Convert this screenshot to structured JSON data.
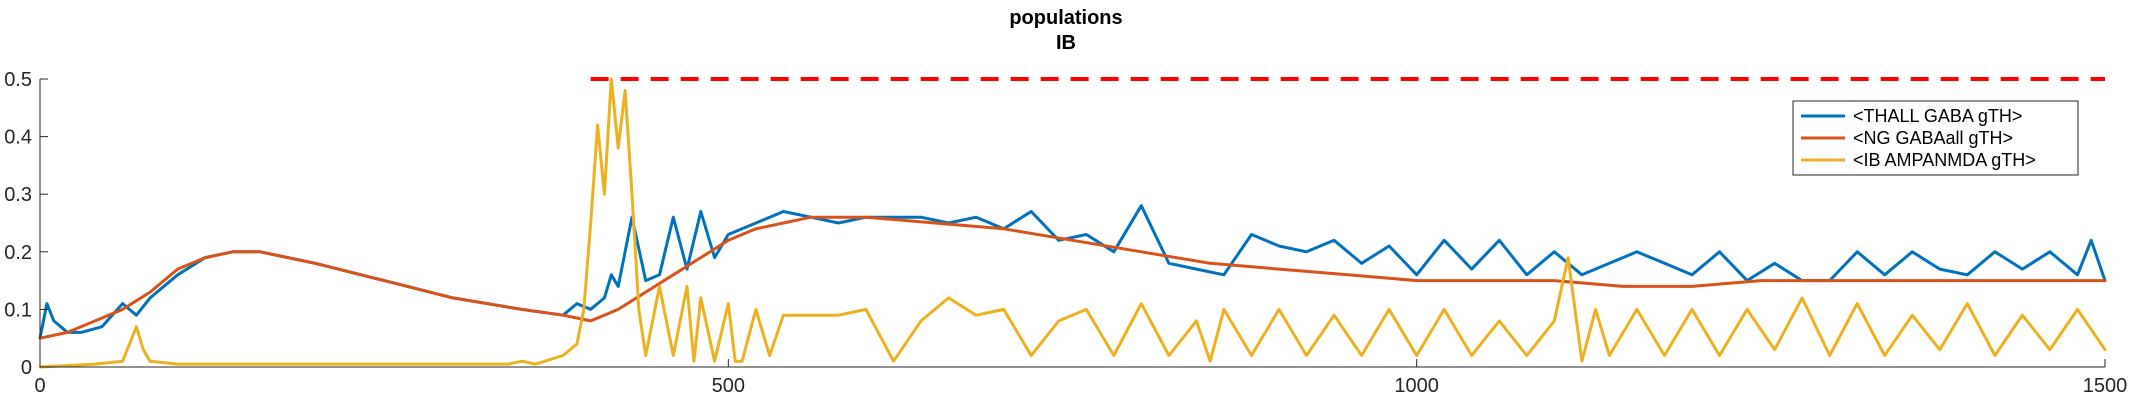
{
  "chart_data": {
    "type": "line",
    "title": "populations",
    "subtitle": "IB",
    "xlabel": "",
    "ylabel": "",
    "xlim": [
      0,
      1500
    ],
    "ylim": [
      0,
      0.5
    ],
    "xticks": [
      0,
      500,
      1000,
      1500
    ],
    "xtick_labels": [
      "0",
      "500",
      "1000",
      "1500"
    ],
    "yticks": [
      0,
      0.1,
      0.2,
      0.3,
      0.4,
      0.5
    ],
    "ytick_labels": [
      "0",
      "0.1",
      "0.2",
      "0.3",
      "0.4",
      "0.5"
    ],
    "grid": false,
    "legend_position": "top-right",
    "threshold": {
      "y": 0.5,
      "x_start": 400,
      "x_end": 1500,
      "color": "#ff0000",
      "style": "dashed"
    },
    "series": [
      {
        "name": "<THALL GABA gTH>",
        "color": "#0072bd",
        "x": [
          0,
          5,
          10,
          15,
          20,
          30,
          45,
          60,
          70,
          80,
          100,
          120,
          140,
          160,
          180,
          200,
          250,
          300,
          350,
          380,
          390,
          400,
          410,
          415,
          420,
          430,
          440,
          450,
          460,
          470,
          480,
          490,
          500,
          520,
          540,
          560,
          580,
          600,
          620,
          640,
          660,
          680,
          700,
          720,
          740,
          760,
          780,
          800,
          820,
          840,
          860,
          880,
          900,
          920,
          940,
          960,
          980,
          1000,
          1020,
          1040,
          1060,
          1080,
          1100,
          1120,
          1140,
          1160,
          1180,
          1200,
          1220,
          1240,
          1260,
          1280,
          1300,
          1320,
          1340,
          1360,
          1380,
          1400,
          1420,
          1440,
          1460,
          1480,
          1490,
          1500
        ],
        "y": [
          0.05,
          0.11,
          0.08,
          0.07,
          0.06,
          0.06,
          0.07,
          0.11,
          0.09,
          0.12,
          0.16,
          0.19,
          0.2,
          0.2,
          0.19,
          0.18,
          0.15,
          0.12,
          0.1,
          0.09,
          0.11,
          0.1,
          0.12,
          0.16,
          0.14,
          0.26,
          0.15,
          0.16,
          0.26,
          0.17,
          0.27,
          0.19,
          0.23,
          0.25,
          0.27,
          0.26,
          0.25,
          0.26,
          0.26,
          0.26,
          0.25,
          0.26,
          0.24,
          0.27,
          0.22,
          0.23,
          0.2,
          0.28,
          0.18,
          0.17,
          0.16,
          0.23,
          0.21,
          0.2,
          0.22,
          0.18,
          0.21,
          0.16,
          0.22,
          0.17,
          0.22,
          0.16,
          0.2,
          0.16,
          0.18,
          0.2,
          0.18,
          0.16,
          0.2,
          0.15,
          0.18,
          0.15,
          0.15,
          0.2,
          0.16,
          0.2,
          0.17,
          0.16,
          0.2,
          0.17,
          0.2,
          0.16,
          0.22,
          0.15
        ]
      },
      {
        "name": "<NG GABAall gTH>",
        "color": "#d95319",
        "x": [
          0,
          20,
          40,
          60,
          80,
          100,
          120,
          140,
          160,
          180,
          200,
          250,
          300,
          350,
          380,
          400,
          420,
          440,
          460,
          480,
          500,
          520,
          540,
          560,
          580,
          600,
          650,
          700,
          750,
          800,
          850,
          900,
          950,
          1000,
          1050,
          1100,
          1150,
          1200,
          1250,
          1300,
          1350,
          1400,
          1450,
          1500
        ],
        "y": [
          0.05,
          0.06,
          0.08,
          0.1,
          0.13,
          0.17,
          0.19,
          0.2,
          0.2,
          0.19,
          0.18,
          0.15,
          0.12,
          0.1,
          0.09,
          0.08,
          0.1,
          0.13,
          0.16,
          0.19,
          0.22,
          0.24,
          0.25,
          0.26,
          0.26,
          0.26,
          0.25,
          0.24,
          0.22,
          0.2,
          0.18,
          0.17,
          0.16,
          0.15,
          0.15,
          0.15,
          0.14,
          0.14,
          0.15,
          0.15,
          0.15,
          0.15,
          0.15,
          0.15
        ]
      },
      {
        "name": "<IB AMPANMDA gTH>",
        "color": "#edb120",
        "x": [
          0,
          40,
          60,
          65,
          70,
          75,
          80,
          100,
          200,
          300,
          340,
          350,
          360,
          380,
          390,
          395,
          400,
          405,
          410,
          415,
          420,
          425,
          430,
          435,
          440,
          450,
          460,
          470,
          475,
          480,
          490,
          500,
          505,
          510,
          520,
          530,
          540,
          560,
          580,
          600,
          620,
          640,
          660,
          680,
          700,
          720,
          740,
          760,
          780,
          800,
          820,
          840,
          850,
          860,
          880,
          900,
          920,
          940,
          960,
          980,
          1000,
          1020,
          1040,
          1060,
          1080,
          1100,
          1110,
          1120,
          1130,
          1140,
          1160,
          1180,
          1200,
          1220,
          1240,
          1260,
          1280,
          1300,
          1320,
          1340,
          1360,
          1380,
          1400,
          1420,
          1440,
          1460,
          1480,
          1500
        ],
        "y": [
          0,
          0.005,
          0.01,
          0.04,
          0.07,
          0.03,
          0.01,
          0.005,
          0.005,
          0.005,
          0.005,
          0.01,
          0.005,
          0.02,
          0.04,
          0.1,
          0.25,
          0.42,
          0.3,
          0.5,
          0.38,
          0.48,
          0.3,
          0.1,
          0.02,
          0.14,
          0.02,
          0.14,
          0.01,
          0.12,
          0.01,
          0.11,
          0.01,
          0.01,
          0.1,
          0.02,
          0.09,
          0.09,
          0.09,
          0.1,
          0.01,
          0.08,
          0.12,
          0.09,
          0.1,
          0.02,
          0.08,
          0.1,
          0.02,
          0.11,
          0.02,
          0.08,
          0.01,
          0.1,
          0.02,
          0.1,
          0.02,
          0.09,
          0.02,
          0.1,
          0.02,
          0.1,
          0.02,
          0.08,
          0.02,
          0.08,
          0.19,
          0.01,
          0.1,
          0.02,
          0.1,
          0.02,
          0.1,
          0.02,
          0.1,
          0.03,
          0.12,
          0.02,
          0.11,
          0.02,
          0.09,
          0.03,
          0.11,
          0.02,
          0.09,
          0.03,
          0.1,
          0.03
        ]
      }
    ]
  }
}
